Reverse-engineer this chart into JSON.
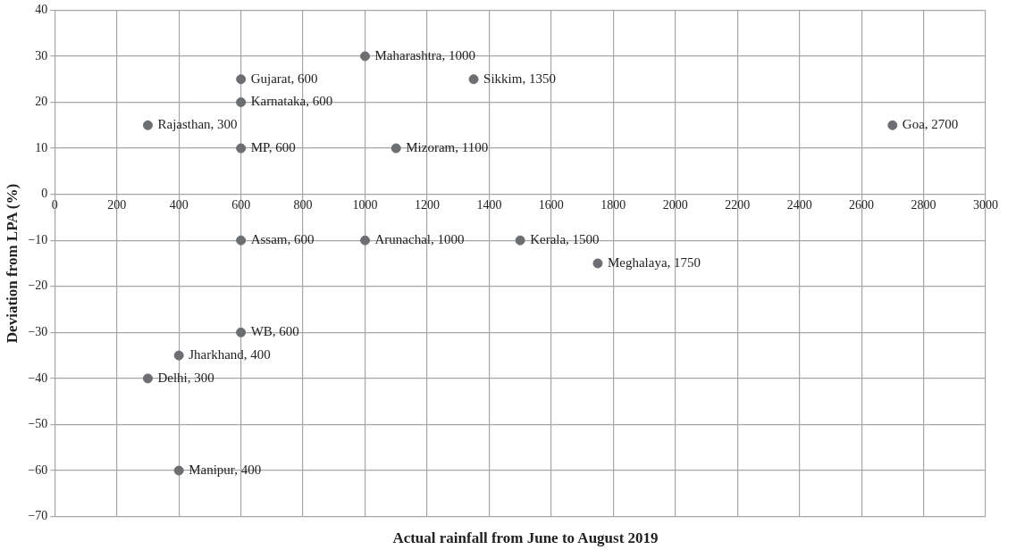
{
  "chart_data": {
    "type": "scatter",
    "xlabel": "Actual rainfall from June to August 2019",
    "ylabel": "Deviation from LPA (%)",
    "x": [
      1000,
      600,
      1350,
      600,
      300,
      2700,
      600,
      1100,
      600,
      1000,
      1500,
      1750,
      600,
      400,
      300,
      400
    ],
    "series": [
      {
        "color": "#6d6e71",
        "values": [
          30,
          25,
          25,
          20,
          15,
          15,
          10,
          10,
          -10,
          -10,
          -10,
          -15,
          -30,
          -35,
          -40,
          -60
        ]
      }
    ],
    "annotations": [
      {
        "text": "Maharashtra, 1000",
        "x": 1000,
        "y": 30
      },
      {
        "text": "Gujarat, 600",
        "x": 600,
        "y": 25
      },
      {
        "text": "Sikkim, 1350",
        "x": 1350,
        "y": 25
      },
      {
        "text": "Karnataka, 600",
        "x": 600,
        "y": 20
      },
      {
        "text": "Rajasthan, 300",
        "x": 300,
        "y": 15
      },
      {
        "text": "Goa, 2700",
        "x": 2700,
        "y": 15
      },
      {
        "text": "MP, 600",
        "x": 600,
        "y": 10
      },
      {
        "text": "Mizoram, 1100",
        "x": 1100,
        "y": 10
      },
      {
        "text": "Assam, 600",
        "x": 600,
        "y": -10
      },
      {
        "text": "Arunachal, 1000",
        "x": 1000,
        "y": -10
      },
      {
        "text": "Kerala, 1500",
        "x": 1500,
        "y": -10
      },
      {
        "text": "Meghalaya, 1750",
        "x": 1750,
        "y": -15
      },
      {
        "text": "WB, 600",
        "x": 600,
        "y": -30
      },
      {
        "text": "Jharkhand, 400",
        "x": 400,
        "y": -35
      },
      {
        "text": "Delhi, 300",
        "x": 300,
        "y": -40
      },
      {
        "text": "Manipur, 400",
        "x": 400,
        "y": -60
      }
    ],
    "xlim": [
      0,
      3000
    ],
    "xticks": [
      0,
      200,
      400,
      600,
      800,
      1000,
      1200,
      1400,
      1600,
      1800,
      2000,
      2200,
      2400,
      2600,
      2800,
      3000
    ],
    "ylim": [
      -70,
      40
    ],
    "yticks": [
      40,
      30,
      20,
      10,
      0,
      {
        "value": -10,
        "label": "−10"
      },
      {
        "value": -20,
        "label": "−20"
      },
      {
        "value": -30,
        "label": "−30"
      },
      {
        "value": -40,
        "label": "−40"
      },
      {
        "value": -50,
        "label": "−50"
      },
      {
        "value": -60,
        "label": "−60"
      },
      {
        "value": -70,
        "label": "−70"
      }
    ],
    "grid": true,
    "legend": false,
    "marker": "circle"
  }
}
